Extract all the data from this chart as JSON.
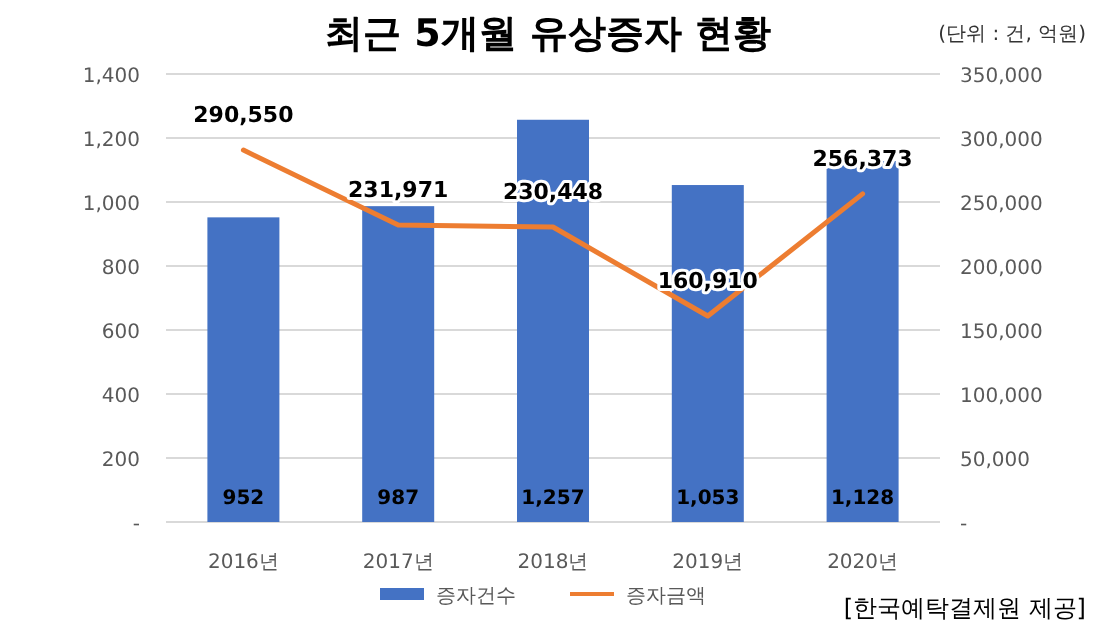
{
  "chart_data": {
    "type": "bar",
    "title": "최근 5개월 유상증자 현황",
    "annotations": [
      "(단위 : 건, 억원)",
      "[한국예탁결제원 제공]"
    ],
    "categories": [
      "2016년",
      "2017년",
      "2018년",
      "2019년",
      "2020년"
    ],
    "series": [
      {
        "name": "증자건수",
        "color": "#4472c4",
        "values": [
          952,
          987,
          1257,
          1053,
          1128
        ],
        "value_labels": [
          "952",
          "987",
          "1,257",
          "1,053",
          "1,128"
        ]
      },
      {
        "name": "증자금액",
        "type": "line",
        "axis": "y2",
        "color": "#ed7d31",
        "values": [
          290550,
          231971,
          230448,
          160910,
          256373
        ],
        "value_labels": [
          "290,550",
          "231,971",
          "230,448",
          "160,910",
          "256,373"
        ]
      }
    ],
    "ylim": [
      0,
      1400
    ],
    "yticks": [
      {
        "value": 0,
        "label": "-"
      },
      200,
      400,
      600,
      800,
      {
        "value": 1000,
        "label": "1,000"
      },
      {
        "value": 1200,
        "label": "1,200"
      },
      {
        "value": 1400,
        "label": "1,400"
      }
    ],
    "y2lim": [
      0,
      350000
    ],
    "y2ticks": [
      {
        "value": 0,
        "label": "-"
      },
      {
        "value": 50000,
        "label": "50,000"
      },
      {
        "value": 100000,
        "label": "100,000"
      },
      {
        "value": 150000,
        "label": "150,000"
      },
      {
        "value": 200000,
        "label": "200,000"
      },
      {
        "value": 250000,
        "label": "250,000"
      },
      {
        "value": 300000,
        "label": "300,000"
      },
      {
        "value": 350000,
        "label": "350,000"
      }
    ],
    "grid": "y",
    "legend": "bottom",
    "marker": "none",
    "line_style": "solid"
  }
}
